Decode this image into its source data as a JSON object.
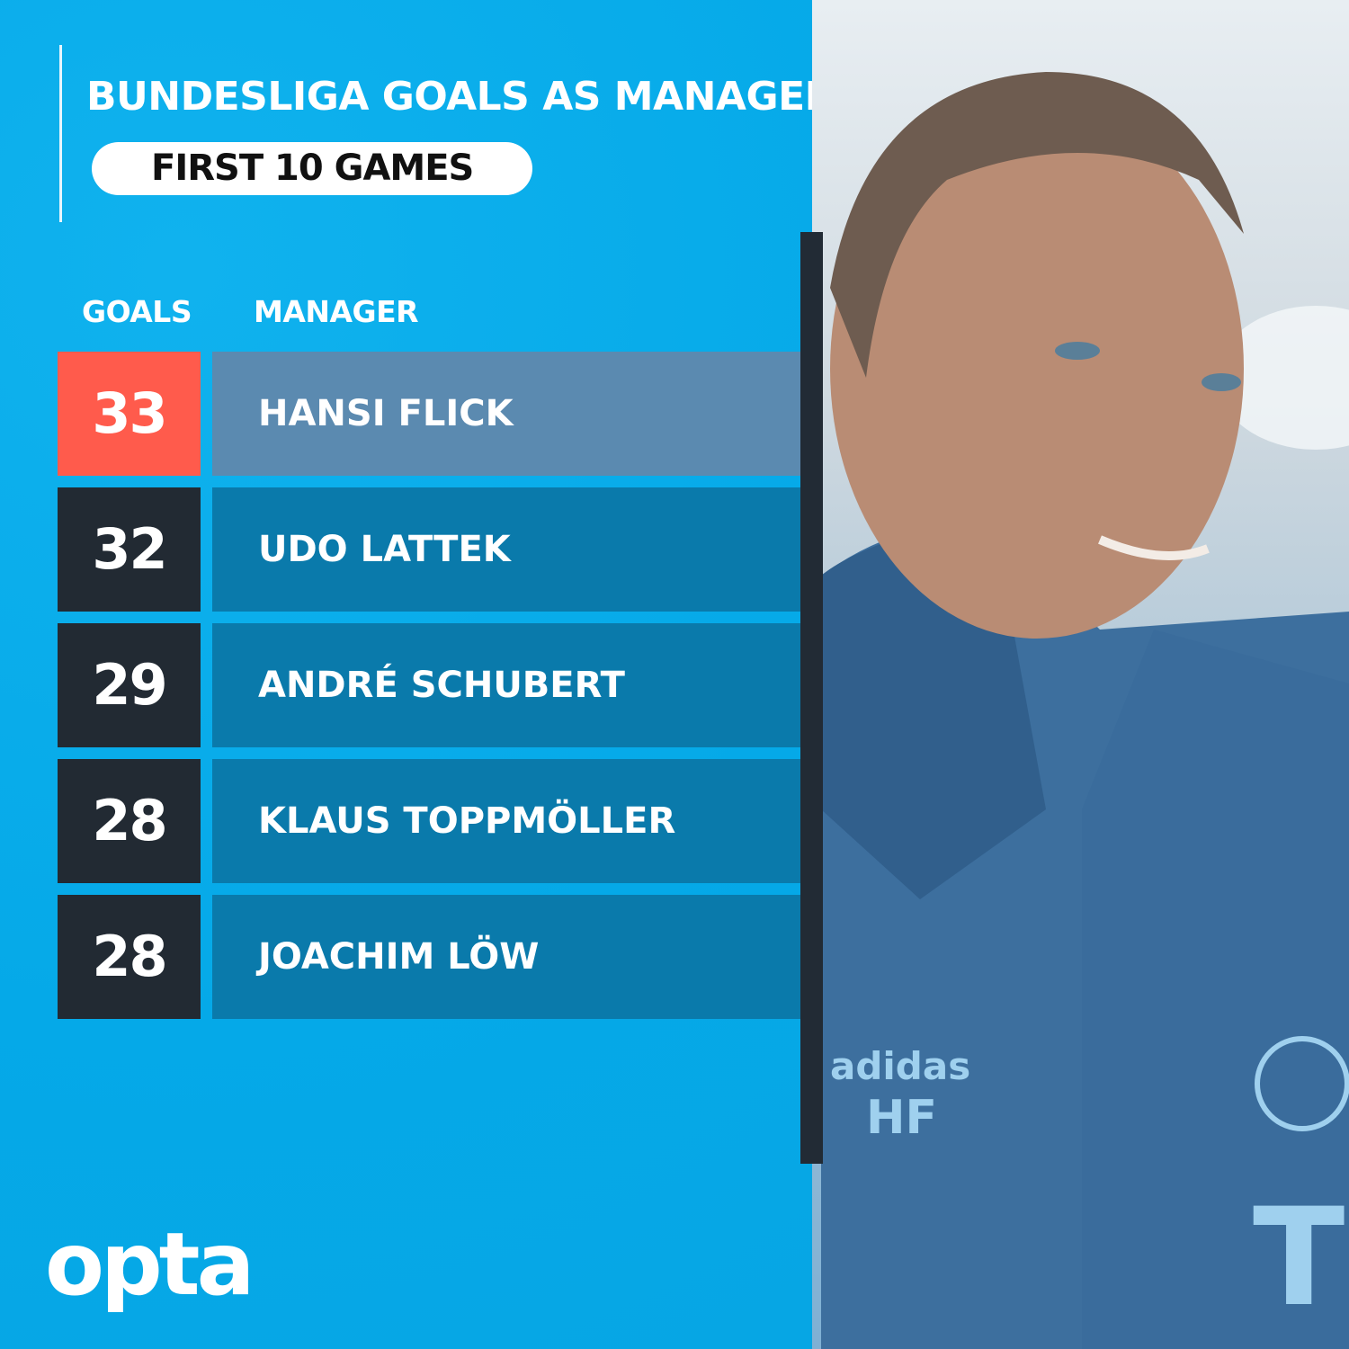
{
  "title": "BUNDESLIGA GOALS AS MANAGER",
  "subtitle": "FIRST 10 GAMES",
  "brand": "opta",
  "colors": {
    "background": "#06abe9",
    "highlight_goals": "#ff5b4c",
    "highlight_name": "#5b8ab0",
    "goals_box": "#222a33",
    "name_box": "#0a7aab"
  },
  "chart_data": {
    "type": "table",
    "title": "BUNDESLIGA GOALS AS MANAGER",
    "subtitle": "FIRST 10 GAMES",
    "columns": [
      "GOALS",
      "MANAGER"
    ],
    "rows": [
      {
        "goals": "33",
        "manager": "HANSI FLICK",
        "highlight": true
      },
      {
        "goals": "32",
        "manager": "UDO LATTEK",
        "highlight": false
      },
      {
        "goals": "29",
        "manager": "ANDRÉ SCHUBERT",
        "highlight": false
      },
      {
        "goals": "28",
        "manager": "KLAUS TOPPMÖLLER",
        "highlight": false
      },
      {
        "goals": "28",
        "manager": "JOACHIM LÖW",
        "highlight": false
      }
    ]
  }
}
